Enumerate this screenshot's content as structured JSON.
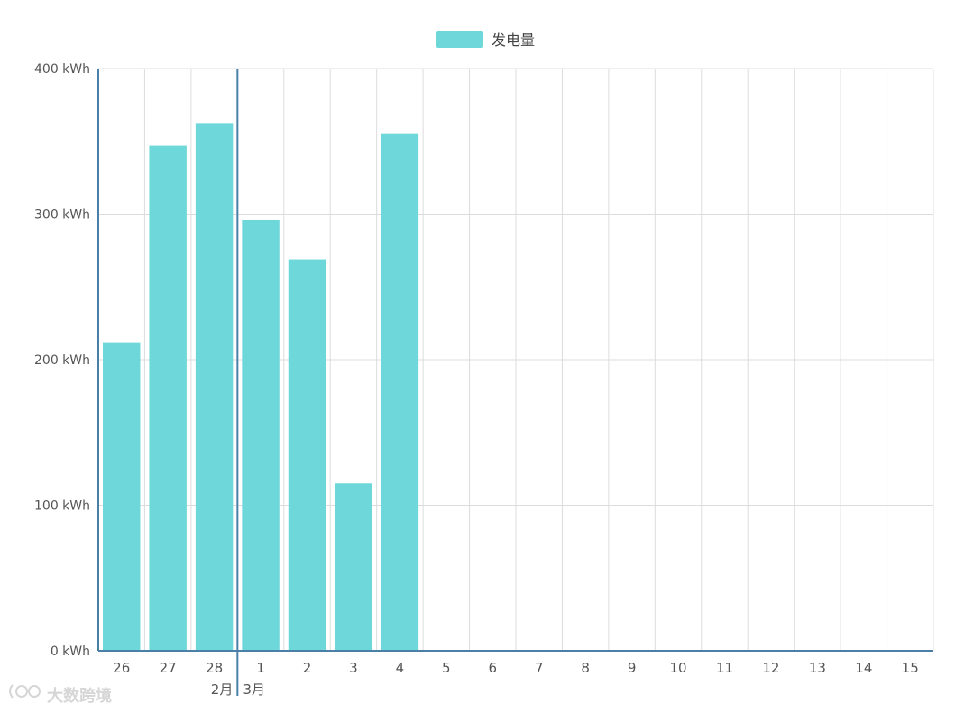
{
  "chart_data": {
    "type": "bar",
    "categories": [
      "26",
      "27",
      "28",
      "1",
      "2",
      "3",
      "4",
      "5",
      "6",
      "7",
      "8",
      "9",
      "10",
      "11",
      "12",
      "13",
      "14",
      "15"
    ],
    "month_labels": [
      {
        "label": "2月",
        "start_index": 0,
        "end_index": 2
      },
      {
        "label": "3月",
        "start_index": 3,
        "end_index": 17
      }
    ],
    "series": [
      {
        "name": "发电量",
        "values": [
          212,
          347,
          362,
          296,
          269,
          115,
          355,
          null,
          null,
          null,
          null,
          null,
          null,
          null,
          null,
          null,
          null,
          null
        ]
      }
    ],
    "ylim": [
      0,
      400
    ],
    "yticks": [
      "0 kWh",
      "100 kWh",
      "200 kWh",
      "300 kWh",
      "400 kWh"
    ],
    "ytick_values": [
      0,
      100,
      200,
      300,
      400
    ],
    "grid": true,
    "legend_position": "top-center",
    "colors": {
      "bar": "#6dd7d9",
      "axis": "#4a7fa8",
      "grid": "#dcdcdc"
    }
  },
  "watermark": {
    "text": "大数跨境"
  }
}
